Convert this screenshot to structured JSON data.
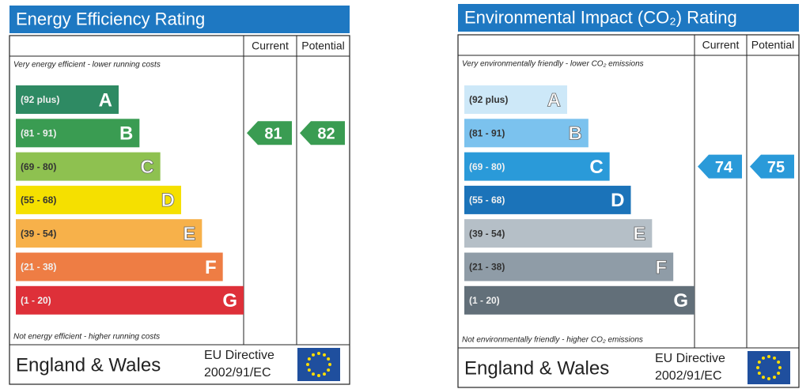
{
  "chart_data": [
    {
      "type": "rating",
      "title": "Energy Efficiency Rating",
      "columns": [
        "Current",
        "Potential"
      ],
      "top_note": "Very energy efficient - lower running costs",
      "bottom_note": "Not energy efficient - higher running costs",
      "bands": [
        {
          "range": "(92 plus)",
          "letter": "A",
          "color": "#2e8a63"
        },
        {
          "range": "(81 - 91)",
          "letter": "B",
          "color": "#3a9c52"
        },
        {
          "range": "(69 - 80)",
          "letter": "C",
          "color": "#8ec150"
        },
        {
          "range": "(55 - 68)",
          "letter": "D",
          "color": "#f5e000"
        },
        {
          "range": "(39 - 54)",
          "letter": "E",
          "color": "#f7b14a"
        },
        {
          "range": "(21 - 38)",
          "letter": "F",
          "color": "#ee7d44"
        },
        {
          "range": "(1 - 20)",
          "letter": "G",
          "color": "#de3039"
        }
      ],
      "current": 81,
      "potential": 82,
      "footer": {
        "region": "England & Wales",
        "directive": "EU Directive",
        "code": "2002/91/EC"
      }
    },
    {
      "type": "rating",
      "title": "Environmental Impact (CO₂) Rating",
      "columns": [
        "Current",
        "Potential"
      ],
      "top_note": "Very environmentally friendly - lower CO₂ emissions",
      "bottom_note": "Not environmentally friendly - higher CO₂ emissions",
      "bands": [
        {
          "range": "(92 plus)",
          "letter": "A",
          "color": "#cde8f8"
        },
        {
          "range": "(81 - 91)",
          "letter": "B",
          "color": "#7bc2ee"
        },
        {
          "range": "(69 - 80)",
          "letter": "C",
          "color": "#2a9ad9"
        },
        {
          "range": "(55 - 68)",
          "letter": "D",
          "color": "#1b73b9"
        },
        {
          "range": "(39 - 54)",
          "letter": "E",
          "color": "#b5bfc7"
        },
        {
          "range": "(21 - 38)",
          "letter": "F",
          "color": "#8f9ca7"
        },
        {
          "range": "(1 - 20)",
          "letter": "G",
          "color": "#626f79"
        }
      ],
      "current": 74,
      "potential": 75,
      "footer": {
        "region": "England & Wales",
        "directive": "EU Directive",
        "code": "2002/91/EC"
      }
    }
  ]
}
